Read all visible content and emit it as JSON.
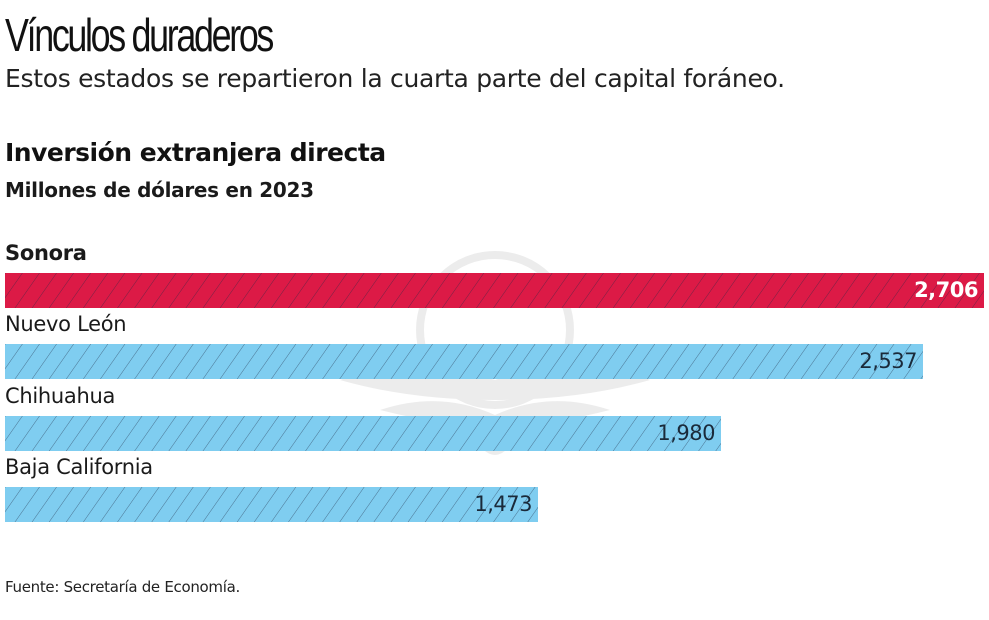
{
  "header": {
    "title": "Vínculos duraderos",
    "subtitle": "Estos estados se repartieron la cuarta parte del capital foráneo."
  },
  "source": "Fuente: Secretaría de Economía.",
  "colors": {
    "highlight": "#dc1a46",
    "normal": "#7fcdf0",
    "hatch": "#1f2a44"
  },
  "watermark_icon": "eagle-emblem-icon",
  "chart_data": {
    "type": "bar",
    "orientation": "horizontal",
    "title": "Inversión extranjera directa",
    "subtitle": "Millones de dólares en 2023",
    "xlabel": "",
    "ylabel": "",
    "xlim": [
      0,
      2706
    ],
    "grid": false,
    "legend": "none",
    "categories": [
      "Sonora",
      "Nuevo León",
      "Chihuahua",
      "Baja California"
    ],
    "values": [
      2706,
      2537,
      1980,
      1473
    ],
    "value_labels": [
      "2,706",
      "2,537",
      "1,980",
      "1,473"
    ],
    "highlighted": [
      "Sonora"
    ]
  }
}
